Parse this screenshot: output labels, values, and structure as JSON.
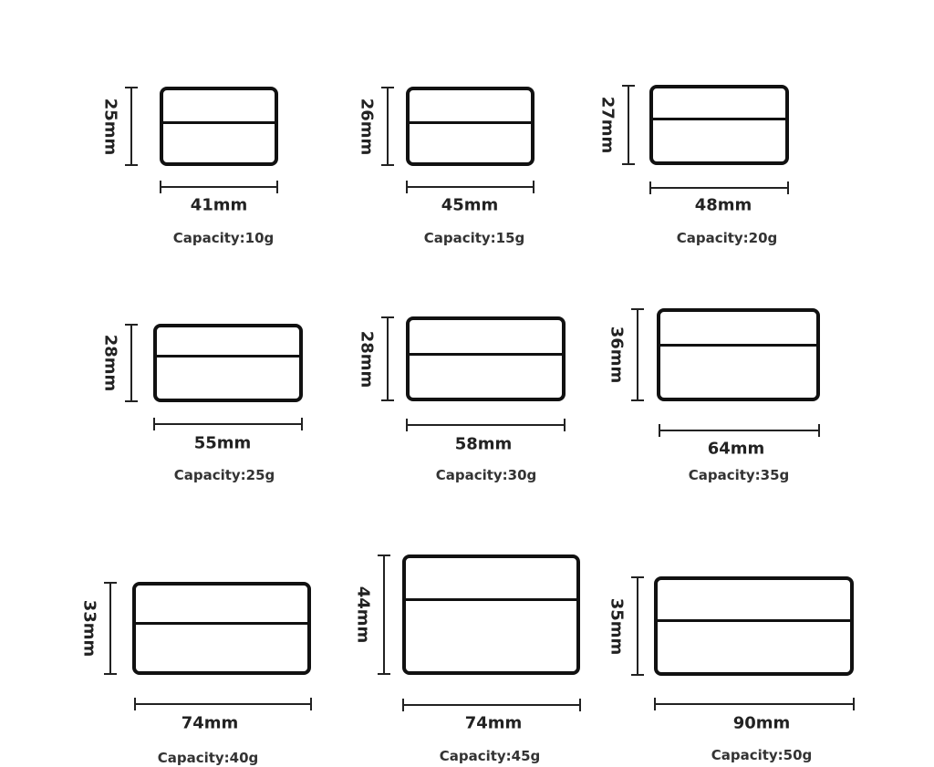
{
  "items": [
    {
      "height": "25mm",
      "width": "41mm",
      "capacity": "Capacity:10g"
    },
    {
      "height": "26mm",
      "width": "45mm",
      "capacity": "Capacity:15g"
    },
    {
      "height": "27mm",
      "width": "48mm",
      "capacity": "Capacity:20g"
    },
    {
      "height": "28mm",
      "width": "55mm",
      "capacity": "Capacity:25g"
    },
    {
      "height": "28mm",
      "width": "58mm",
      "capacity": "Capacity:30g"
    },
    {
      "height": "36mm",
      "width": "64mm",
      "capacity": "Capacity:35g"
    },
    {
      "height": "33mm",
      "width": "74mm",
      "capacity": "Capacity:40g"
    },
    {
      "height": "44mm",
      "width": "74mm",
      "capacity": "Capacity:45g"
    },
    {
      "height": "35mm",
      "width": "90mm",
      "capacity": "Capacity:50g"
    }
  ]
}
